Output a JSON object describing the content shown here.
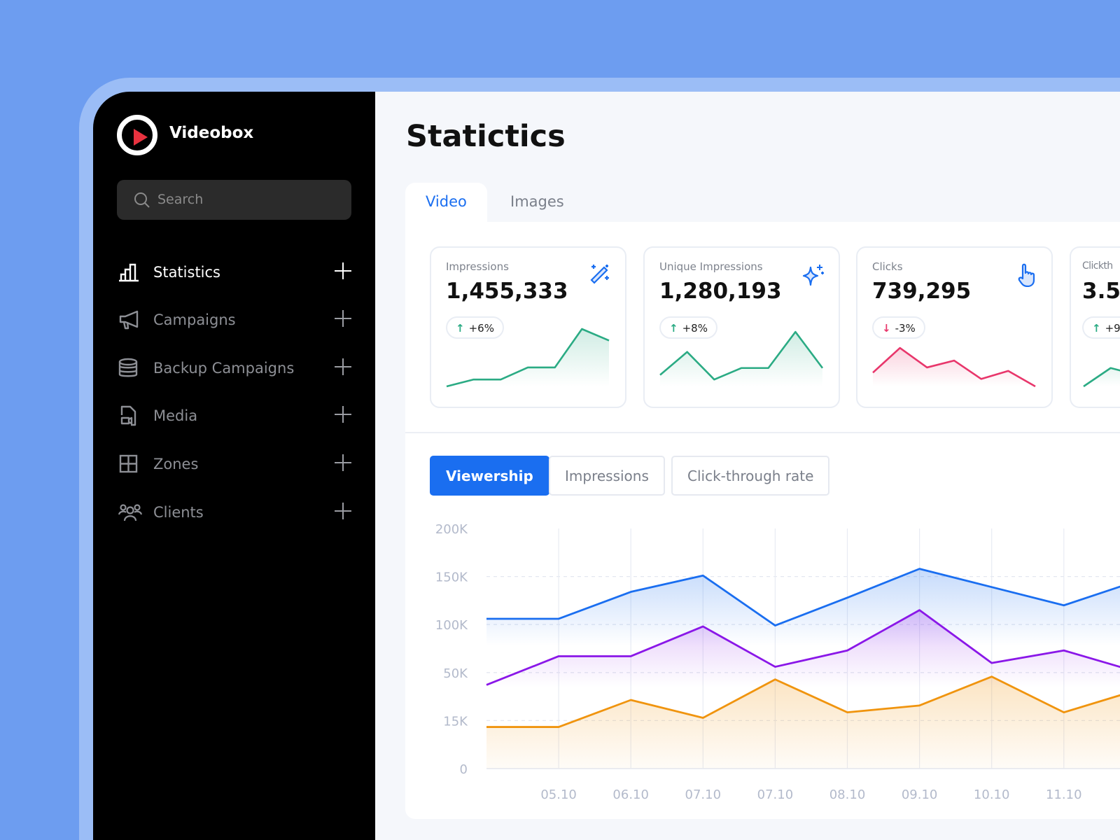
{
  "app": {
    "name": "Videobox",
    "logo_icon": "play-circle-icon",
    "accent": "#1a6ef0"
  },
  "search": {
    "placeholder": "Search"
  },
  "sidebar": {
    "items": [
      {
        "label": "Statistics",
        "icon": "bar-chart-icon",
        "active": true
      },
      {
        "label": "Campaigns",
        "icon": "megaphone-icon"
      },
      {
        "label": "Backup Campaigns",
        "icon": "database-icon"
      },
      {
        "label": "Media",
        "icon": "video-file-icon"
      },
      {
        "label": "Zones",
        "icon": "grid-icon"
      },
      {
        "label": "Clients",
        "icon": "users-icon"
      }
    ]
  },
  "page": {
    "title": "Statictics"
  },
  "tabs": [
    {
      "label": "Video",
      "active": true
    },
    {
      "label": "Images"
    }
  ],
  "cards": [
    {
      "label": "Impressions",
      "value": "1,455,333",
      "change": "+6%",
      "direction": "up",
      "icon": "magic-wand-icon",
      "color": "#2bab84",
      "sparkline": [
        0,
        12,
        12,
        33,
        33,
        100,
        80
      ]
    },
    {
      "label": "Unique Impressions",
      "value": "1,280,193",
      "change": "+8%",
      "direction": "up",
      "icon": "sparkle-icon",
      "color": "#2bab84",
      "sparkline": [
        20,
        60,
        12,
        32,
        32,
        95,
        32
      ]
    },
    {
      "label": "Clicks",
      "value": "739,295",
      "change": "-3%",
      "direction": "down",
      "icon": "pointer-hand-icon",
      "color": "#e8366b",
      "sparkline": [
        24,
        67,
        33,
        45,
        13,
        27,
        0
      ]
    },
    {
      "label": "Clickth",
      "value": "3.5",
      "change": "+9",
      "direction": "up",
      "icon": "",
      "color": "#2bab84",
      "sparkline": [
        0,
        32,
        20,
        40,
        30,
        60,
        40
      ]
    }
  ],
  "chart_buttons": [
    {
      "label": "Viewership",
      "active": true
    },
    {
      "label": "Impressions"
    },
    {
      "label": "Click-through rate"
    }
  ],
  "chart_data": {
    "type": "area",
    "categories": [
      "",
      "05.10",
      "06.10",
      "07.10",
      "07.10",
      "08.10",
      "09.10",
      "10.10",
      "11.10",
      ""
    ],
    "y_ticks": [
      "0",
      "15K",
      "50K",
      "100K",
      "150K",
      "200K"
    ],
    "y_tick_values": [
      0,
      15,
      50,
      100,
      150,
      200
    ],
    "grid": true,
    "series": [
      {
        "color": "#1a6ef0",
        "values": [
          106,
          106,
          134,
          151,
          99,
          128,
          158,
          139,
          120,
          145
        ]
      },
      {
        "color": "#8a17e8",
        "values": [
          41,
          67,
          67,
          98,
          56,
          73,
          115,
          60,
          73,
          51
        ]
      },
      {
        "color": "#f0940e",
        "values": [
          13,
          13,
          30,
          17,
          45,
          21,
          26,
          47,
          21,
          37
        ]
      }
    ]
  }
}
